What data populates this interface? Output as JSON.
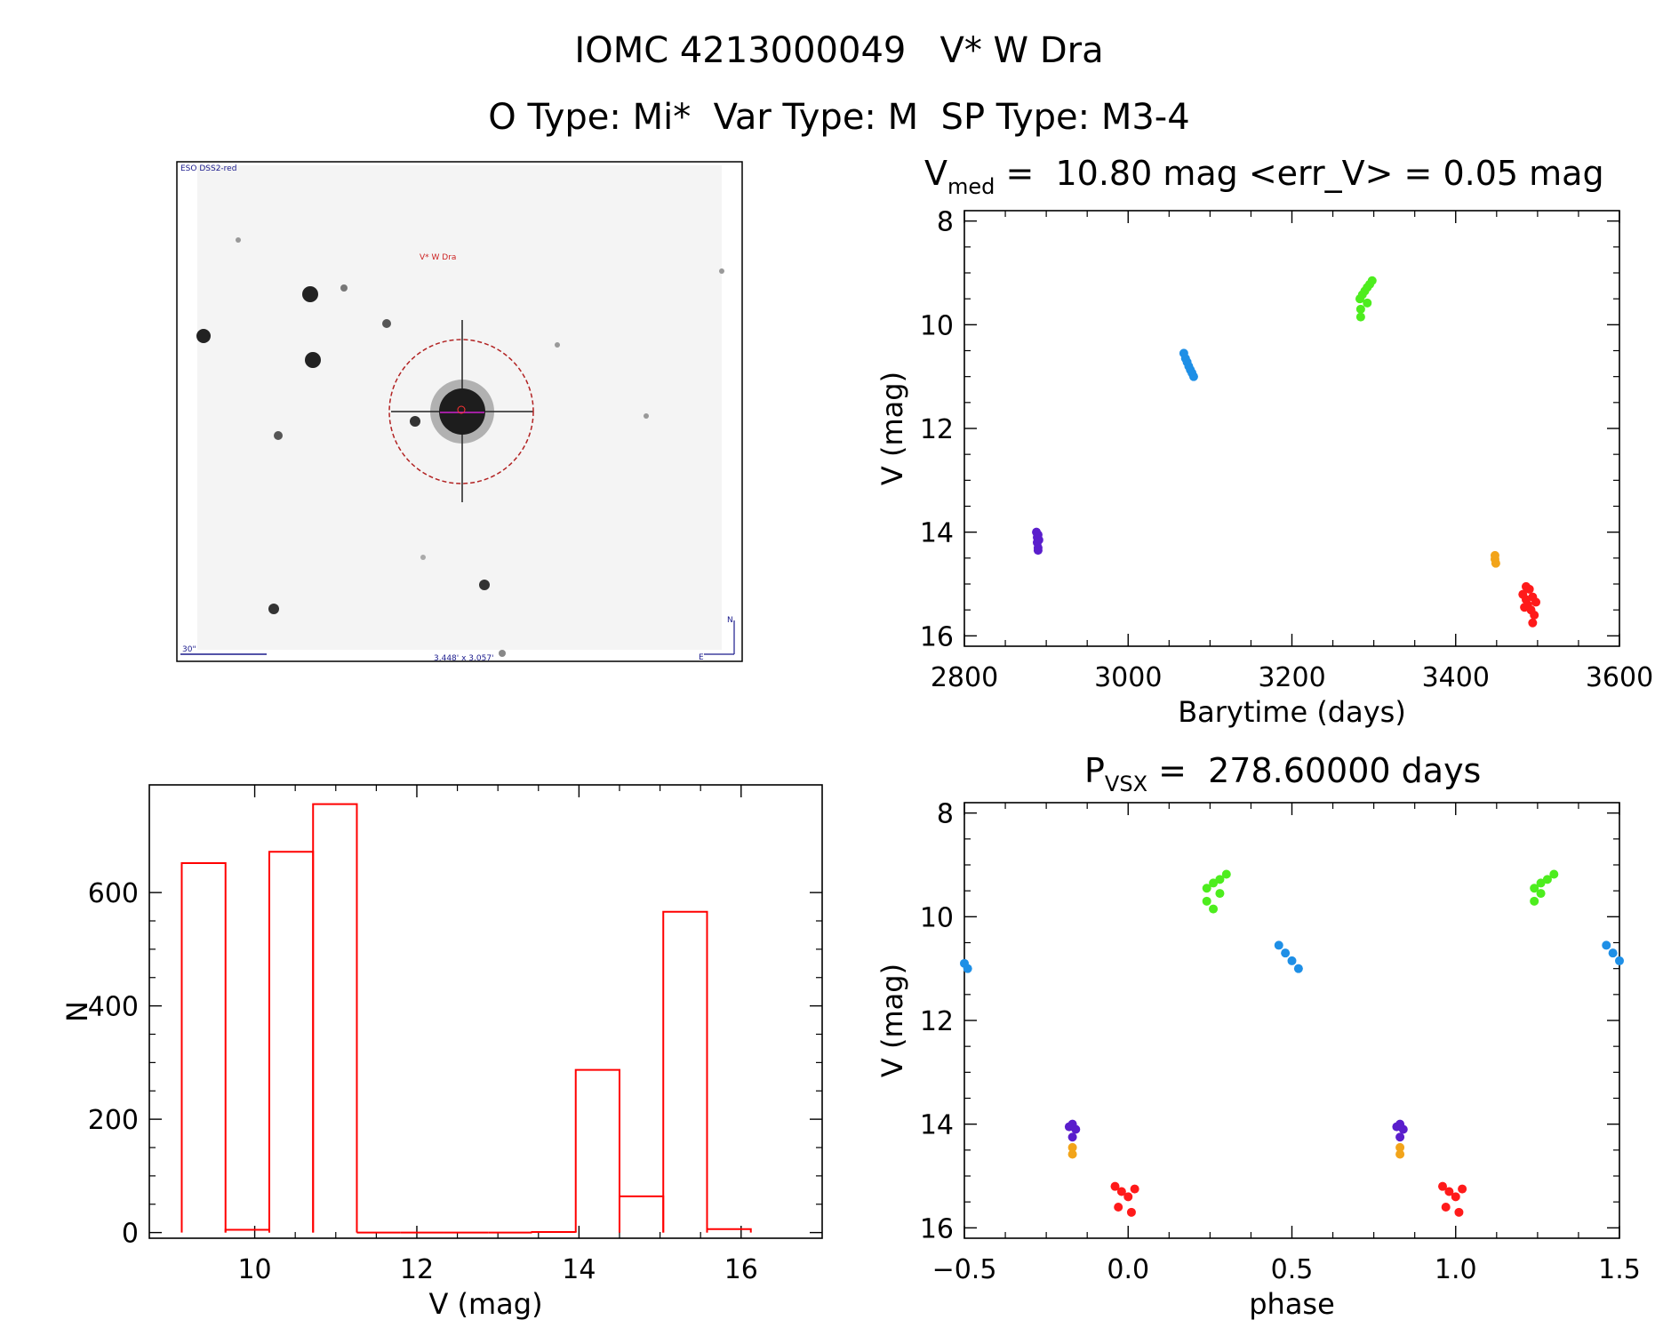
{
  "title_line1": "IOMC 4213000049   V* W Dra",
  "title_line2": "O Type: Mi*  Var Type: M  SP Type: M3-4",
  "finder": {
    "survey_label": "ESO DSS2-red",
    "target_label": "V* W Dra",
    "scale_label": "30\"",
    "fov_label": "3.448' x 3.057'",
    "north_label": "N",
    "east_label": "E"
  },
  "chart_data": [
    {
      "id": "light_curve",
      "type": "scatter",
      "title_main": "V",
      "title_sub": "med",
      "title_rest": " =  10.80 mag <err_V> = 0.05 mag",
      "xlabel": "Barytime (days)",
      "ylabel": "V (mag)",
      "xlim": [
        2800,
        3600
      ],
      "ylim": [
        16.2,
        7.8
      ],
      "y_inverted": true,
      "xticks": [
        2800,
        3000,
        3200,
        3400,
        3600
      ],
      "xtick_labels": [
        "2800",
        "3000",
        "3200",
        "3400",
        "3600"
      ],
      "yticks": [
        8,
        10,
        12,
        14,
        16
      ],
      "ytick_labels": [
        "8",
        "10",
        "12",
        "14",
        "16"
      ],
      "series": [
        {
          "name": "purple",
          "color": "#5a1ecc",
          "x": [
            2888,
            2889,
            2890,
            2891,
            2889,
            2890,
            2890
          ],
          "y": [
            14.0,
            14.1,
            14.05,
            14.15,
            14.2,
            14.3,
            14.35
          ]
        },
        {
          "name": "blue",
          "color": "#1e8fe6",
          "x": [
            3068,
            3070,
            3072,
            3074,
            3076,
            3078,
            3080
          ],
          "y": [
            10.55,
            10.65,
            10.72,
            10.8,
            10.87,
            10.93,
            11.0
          ]
        },
        {
          "name": "green",
          "color": "#4ded1e",
          "x": [
            3283,
            3286,
            3289,
            3292,
            3295,
            3298,
            3284,
            3284,
            3292
          ],
          "y": [
            9.5,
            9.42,
            9.35,
            9.28,
            9.22,
            9.15,
            9.7,
            9.85,
            9.58
          ]
        },
        {
          "name": "orange",
          "color": "#f2a41a",
          "x": [
            3448,
            3448,
            3449
          ],
          "y": [
            14.45,
            14.52,
            14.6
          ]
        },
        {
          "name": "red",
          "color": "#ff1a1a",
          "x": [
            3482,
            3486,
            3490,
            3494,
            3498,
            3484,
            3492,
            3496,
            3488,
            3494,
            3486
          ],
          "y": [
            15.2,
            15.3,
            15.1,
            15.25,
            15.35,
            15.45,
            15.5,
            15.6,
            15.4,
            15.75,
            15.05
          ]
        }
      ]
    },
    {
      "id": "phased",
      "type": "scatter",
      "title_main": "P",
      "title_sub": "VSX",
      "title_rest": " =  278.60000 days",
      "xlabel": "phase",
      "ylabel": "V (mag)",
      "xlim": [
        -0.5,
        1.5
      ],
      "ylim": [
        16.2,
        7.8
      ],
      "y_inverted": true,
      "xticks": [
        -0.5,
        0.0,
        0.5,
        1.0,
        1.5
      ],
      "xtick_labels": [
        "−0.5",
        "0.0",
        "0.5",
        "1.0",
        "1.5"
      ],
      "yticks": [
        8,
        10,
        12,
        14,
        16
      ],
      "ytick_labels": [
        "8",
        "10",
        "12",
        "14",
        "16"
      ],
      "series": [
        {
          "name": "purple",
          "color": "#5a1ecc",
          "x": [
            -0.18,
            -0.17,
            -0.16,
            -0.17,
            0.82,
            0.83,
            0.84,
            0.83
          ],
          "y": [
            14.05,
            14.0,
            14.1,
            14.25,
            14.05,
            14.0,
            14.1,
            14.25
          ]
        },
        {
          "name": "orange",
          "color": "#f2a41a",
          "x": [
            -0.17,
            -0.17,
            0.83,
            0.83
          ],
          "y": [
            14.45,
            14.58,
            14.45,
            14.58
          ]
        },
        {
          "name": "red",
          "color": "#ff1a1a",
          "x": [
            -0.04,
            -0.02,
            0.0,
            0.02,
            -0.03,
            0.01,
            0.96,
            0.98,
            1.0,
            1.02,
            0.97,
            1.01
          ],
          "y": [
            15.2,
            15.3,
            15.4,
            15.25,
            15.6,
            15.7,
            15.2,
            15.3,
            15.4,
            15.25,
            15.6,
            15.7
          ]
        },
        {
          "name": "green",
          "color": "#4ded1e",
          "x": [
            0.24,
            0.26,
            0.28,
            0.3,
            0.24,
            0.26,
            0.28,
            1.24,
            1.26,
            1.28,
            1.3,
            1.24,
            1.26
          ],
          "y": [
            9.45,
            9.35,
            9.28,
            9.18,
            9.7,
            9.85,
            9.55,
            9.45,
            9.35,
            9.28,
            9.18,
            9.7,
            9.55
          ]
        },
        {
          "name": "blue",
          "color": "#1e8fe6",
          "x": [
            0.46,
            0.48,
            0.5,
            0.52,
            -0.5,
            -0.49,
            1.46,
            1.48,
            1.5
          ],
          "y": [
            10.55,
            10.7,
            10.85,
            11.0,
            10.9,
            11.0,
            10.55,
            10.7,
            10.85
          ]
        }
      ]
    },
    {
      "id": "histogram",
      "type": "bar",
      "title": "",
      "xlabel": "V (mag)",
      "ylabel": "N",
      "color": "#ff0000",
      "xlim": [
        8.7,
        17.0
      ],
      "ylim": [
        -10,
        790
      ],
      "xticks": [
        10,
        12,
        14,
        16
      ],
      "xtick_labels": [
        "10",
        "12",
        "14",
        "16"
      ],
      "yticks": [
        0,
        200,
        400,
        600
      ],
      "ytick_labels": [
        "0",
        "200",
        "400",
        "600"
      ],
      "bins": [
        {
          "x0": 9.1,
          "x1": 9.64,
          "count": 652
        },
        {
          "x0": 9.64,
          "x1": 10.18,
          "count": 5
        },
        {
          "x0": 10.18,
          "x1": 10.72,
          "count": 672
        },
        {
          "x0": 10.72,
          "x1": 11.26,
          "count": 756
        },
        {
          "x0": 11.26,
          "x1": 11.8,
          "count": 0
        },
        {
          "x0": 11.8,
          "x1": 12.34,
          "count": 0
        },
        {
          "x0": 12.34,
          "x1": 12.88,
          "count": 0
        },
        {
          "x0": 12.88,
          "x1": 13.42,
          "count": 0
        },
        {
          "x0": 13.42,
          "x1": 13.96,
          "count": 1
        },
        {
          "x0": 13.96,
          "x1": 14.5,
          "count": 287
        },
        {
          "x0": 14.5,
          "x1": 15.04,
          "count": 64
        },
        {
          "x0": 15.04,
          "x1": 15.58,
          "count": 566
        },
        {
          "x0": 15.58,
          "x1": 16.12,
          "count": 6
        }
      ]
    }
  ]
}
